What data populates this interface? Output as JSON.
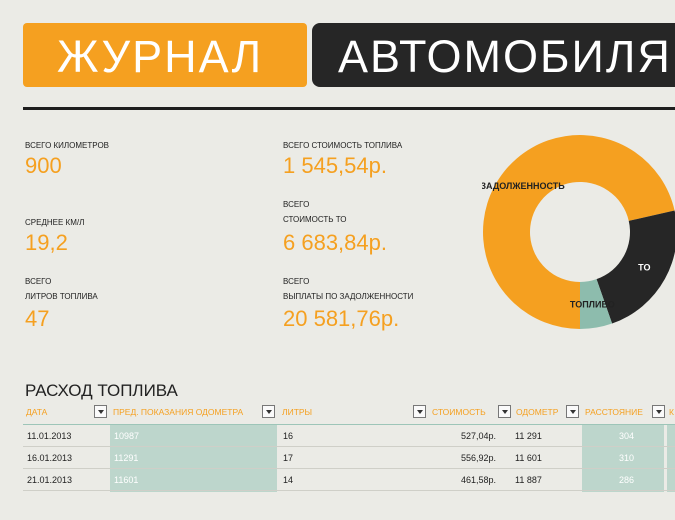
{
  "title": {
    "part1": "ЖУРНАЛ",
    "part2": "АВТОМОБИЛЯ"
  },
  "stats": {
    "km_label": "ВСЕГО КИЛОМЕТРОВ",
    "km_value": "900",
    "avg_label": "СРЕДНЕЕ КМ/Л",
    "avg_value": "19,2",
    "liters_label1": "ВСЕГО",
    "liters_label2": "ЛИТРОВ ТОПЛИВА",
    "liters_value": "47",
    "fuelcost_label": "ВСЕГО СТОИМОСТЬ ТОПЛИВА",
    "fuelcost_value": "1 545,54р.",
    "to_label1": "ВСЕГО",
    "to_label2": "СТОИМОСТЬ ТО",
    "to_value": "6 683,84р.",
    "debt_label1": "ВСЕГО",
    "debt_label2": "ВЫПЛАТЫ ПО ЗАДОЛЖЕННОСТИ",
    "debt_value": "20 581,76р."
  },
  "chart_data": {
    "type": "pie",
    "categories": [
      "ЗАДОЛЖЕННОСТЬ",
      "ТО",
      "ТОПЛИВО"
    ],
    "values": [
      20581.76,
      6683.84,
      1545.54
    ],
    "colors": [
      "#f5a020",
      "#262626",
      "#8dbcad"
    ]
  },
  "fuel": {
    "title": "РАСХОД ТОПЛИВА",
    "headers": [
      "ДАТА",
      "ПРЕД. ПОКАЗАНИЯ ОДОМЕТРА",
      "ЛИТРЫ",
      "СТОИМОСТЬ",
      "ОДОМЕТР",
      "РАССТОЯНИЕ",
      "К"
    ],
    "rows": [
      {
        "date": "11.01.2013",
        "prev": "10987",
        "liters": "16",
        "cost": "527,04р.",
        "odo": "11 291",
        "dist": "304"
      },
      {
        "date": "16.01.2013",
        "prev": "11291",
        "liters": "17",
        "cost": "556,92р.",
        "odo": "11 601",
        "dist": "310"
      },
      {
        "date": "21.01.2013",
        "prev": "11601",
        "liters": "14",
        "cost": "461,58р.",
        "odo": "11 887",
        "dist": "286"
      }
    ]
  }
}
